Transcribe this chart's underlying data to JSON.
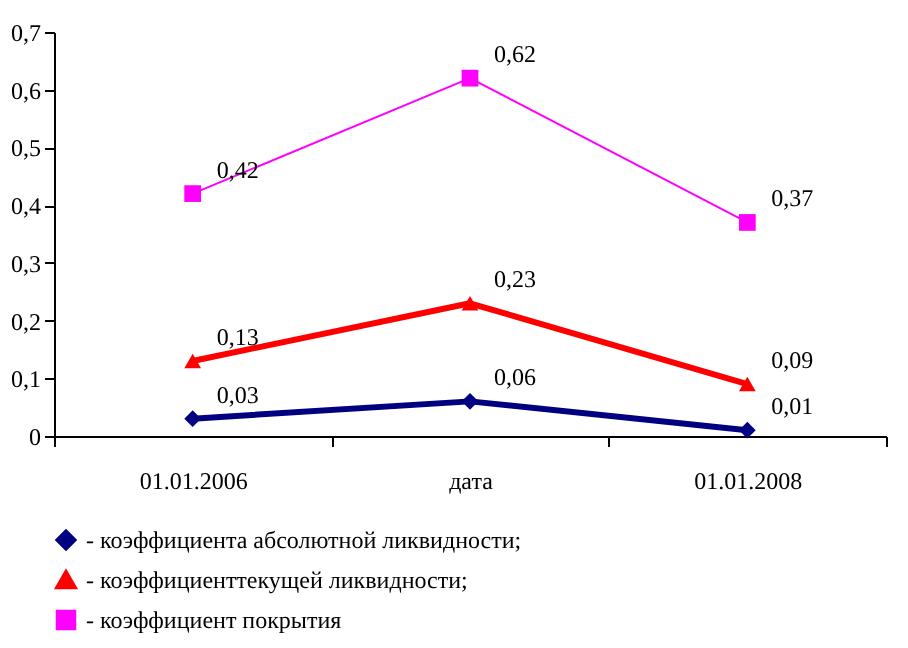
{
  "chart_data": {
    "type": "line",
    "categories": [
      "01.01.2006",
      "дата",
      "01.01.2008"
    ],
    "series": [
      {
        "name": "- коэффициента абсолютной ликвидности;",
        "color": "#000080",
        "marker": "diamond",
        "values": [
          0.03,
          0.06,
          0.01
        ],
        "value_labels": [
          "0,03",
          "0,06",
          "0,01"
        ]
      },
      {
        "name": "- коэффициенттекущей ликвидности;",
        "color": "#ff0000",
        "marker": "triangle",
        "values": [
          0.13,
          0.23,
          0.09
        ],
        "value_labels": [
          "0,13",
          "0,23",
          "0,09"
        ]
      },
      {
        "name": "- коэффициент покрытия",
        "color": "#ff00ff",
        "marker": "square",
        "values": [
          0.42,
          0.62,
          0.37
        ],
        "value_labels": [
          "0,42",
          "0,62",
          "0,37"
        ]
      }
    ],
    "ylim": [
      0,
      0.7
    ],
    "yticks": [
      0,
      {
        "value": 0.1,
        "label": "0,1"
      },
      {
        "value": 0.2,
        "label": "0,2"
      },
      {
        "value": 0.3,
        "label": "0,3"
      },
      {
        "value": 0.4,
        "label": "0,4"
      },
      {
        "value": 0.5,
        "label": "0,5"
      },
      {
        "value": 0.6,
        "label": "0,6"
      },
      {
        "value": 0.7,
        "label": "0,7"
      }
    ],
    "grid": false,
    "legend": "bottom"
  }
}
